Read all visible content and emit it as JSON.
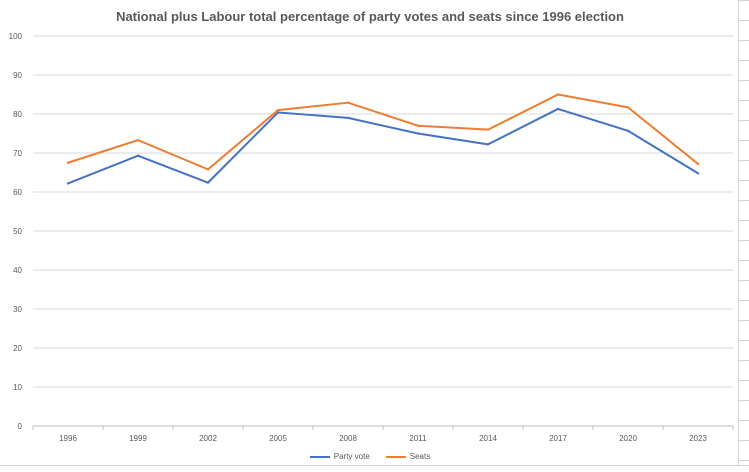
{
  "chart_data": {
    "type": "line",
    "title": "National plus Labour total percentage of party votes and seats since 1996 election",
    "xlabel": "",
    "ylabel": "",
    "categories": [
      "1996",
      "1999",
      "2002",
      "2005",
      "2008",
      "2011",
      "2014",
      "2017",
      "2020",
      "2023"
    ],
    "ylim": [
      0,
      100
    ],
    "yticks": [
      "0",
      "10",
      "20",
      "30",
      "40",
      "50",
      "60",
      "70",
      "80",
      "90",
      "100"
    ],
    "grid": true,
    "legend_position": "bottom",
    "series": [
      {
        "name": "Party vote",
        "color": "#4472c4",
        "values": [
          62.2,
          69.3,
          62.4,
          80.4,
          79.0,
          75.0,
          72.2,
          81.3,
          75.7,
          64.8
        ]
      },
      {
        "name": "Seats",
        "color": "#ed7d31",
        "values": [
          67.5,
          73.3,
          65.8,
          81.0,
          82.9,
          77.0,
          76.0,
          85.0,
          81.7,
          67.2
        ]
      }
    ]
  }
}
